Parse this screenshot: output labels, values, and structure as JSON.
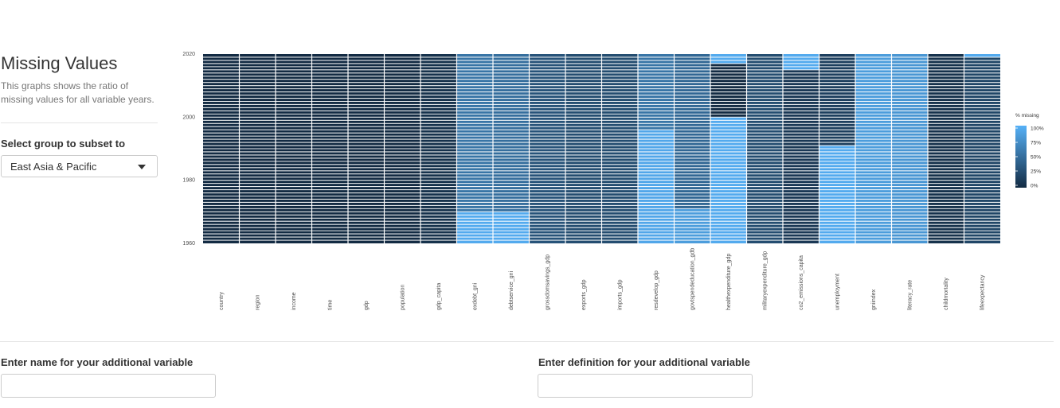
{
  "sidebar": {
    "title": "Missing Values",
    "description": "This graphs shows the ratio of missing values for all variable years.",
    "select_label": "Select group to subset to",
    "select_value": "East Asia & Pacific"
  },
  "chart_data": {
    "type": "heatmap",
    "title": "",
    "xlabel": "",
    "ylabel": "",
    "ylim": [
      1960,
      2020
    ],
    "y_ticks": [
      "2020",
      "2000",
      "1980",
      "1960"
    ],
    "categories": [
      "country",
      "region",
      "income",
      "time",
      "gdp",
      "population",
      "gdp_capita",
      "exdebt_gni",
      "debtservice_gni",
      "grossdomsavings_gdp",
      "exports_gdp",
      "imports_gdp",
      "resdevelop_gdp",
      "govtspendeducation_gdb",
      "healthexpenditure_gdp",
      "militaryexpenditure_gdp",
      "co2_emissions_capita",
      "unemployment",
      "gniindex",
      "literacy_rate",
      "childmortality",
      "lifeexpectancy"
    ],
    "legend": {
      "title": "% missing",
      "labels": [
        "100%",
        "75%",
        "50%",
        "25%",
        "0%"
      ],
      "colors": {
        "low": "#132b43",
        "high": "#56b1f7"
      }
    },
    "segments": [
      [
        [
          1960,
          2020,
          0.0
        ]
      ],
      [
        [
          1960,
          2020,
          0.0
        ]
      ],
      [
        [
          1960,
          2020,
          0.0
        ]
      ],
      [
        [
          1960,
          2020,
          0.0
        ]
      ],
      [
        [
          1960,
          2020,
          0.0
        ]
      ],
      [
        [
          1960,
          2020,
          0.0
        ]
      ],
      [
        [
          1960,
          2020,
          0.05
        ]
      ],
      [
        [
          1960,
          1970,
          0.95
        ],
        [
          1970,
          2020,
          0.55
        ]
      ],
      [
        [
          1960,
          1970,
          0.95
        ],
        [
          1970,
          2020,
          0.5
        ]
      ],
      [
        [
          1960,
          2020,
          0.3
        ]
      ],
      [
        [
          1960,
          2020,
          0.25
        ]
      ],
      [
        [
          1960,
          2020,
          0.25
        ]
      ],
      [
        [
          1960,
          1996,
          0.92
        ],
        [
          1996,
          2020,
          0.55
        ]
      ],
      [
        [
          1960,
          1971,
          0.85
        ],
        [
          1971,
          2020,
          0.45
        ]
      ],
      [
        [
          1960,
          2000,
          0.95
        ],
        [
          2000,
          2017,
          0.0
        ],
        [
          2017,
          2020,
          0.95
        ]
      ],
      [
        [
          1960,
          2020,
          0.25
        ]
      ],
      [
        [
          1960,
          2015,
          0.1
        ],
        [
          2015,
          2020,
          0.95
        ]
      ],
      [
        [
          1960,
          1991,
          0.95
        ],
        [
          1991,
          2020,
          0.15
        ]
      ],
      [
        [
          1960,
          2020,
          0.85
        ]
      ],
      [
        [
          1960,
          2020,
          0.8
        ]
      ],
      [
        [
          1960,
          2020,
          0.05
        ]
      ],
      [
        [
          1960,
          2019,
          0.2
        ],
        [
          2019,
          2020,
          0.95
        ]
      ]
    ]
  },
  "form": {
    "name_label": "Enter name for your additional variable",
    "name_value": "",
    "definition_label": "Enter definition for your additional variable",
    "definition_value": ""
  }
}
